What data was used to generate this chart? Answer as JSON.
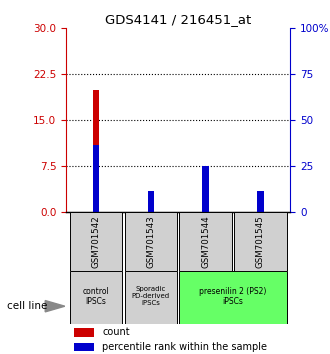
{
  "title": "GDS4141 / 216451_at",
  "samples": [
    "GSM701542",
    "GSM701543",
    "GSM701544",
    "GSM701545"
  ],
  "count_values": [
    20,
    2.5,
    7.5,
    1.5
  ],
  "percentile_values": [
    11,
    3.5,
    7.5,
    3.5
  ],
  "left_ylim": [
    0,
    30
  ],
  "right_ylim": [
    0,
    100
  ],
  "left_yticks": [
    0,
    7.5,
    15,
    22.5,
    30
  ],
  "right_yticks": [
    0,
    25,
    50,
    75,
    100
  ],
  "right_yticklabels": [
    "0",
    "25",
    "50",
    "75",
    "100%"
  ],
  "bar_width": 0.12,
  "red_color": "#cc0000",
  "blue_color": "#0000cc",
  "group_colors_grey": "#d0d0d0",
  "group_color_green": "#66ff66",
  "cell_line_label": "cell line",
  "legend_count": "count",
  "legend_percentile": "percentile rank within the sample",
  "dotted_lines": [
    7.5,
    15,
    22.5
  ]
}
